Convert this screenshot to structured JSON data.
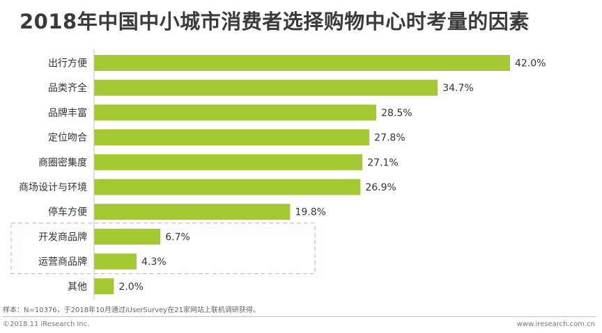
{
  "chart_data": {
    "type": "bar",
    "orientation": "horizontal",
    "title": "2018年中国中小城市消费者选择购物中心时考量的因素",
    "categories": [
      "出行方便",
      "品类齐全",
      "品牌丰富",
      "定位吻合",
      "商圈密集度",
      "商场设计与环境",
      "停车方便",
      "开发商品牌",
      "运营商品牌",
      "其他"
    ],
    "values": [
      42.0,
      34.7,
      28.5,
      27.8,
      27.1,
      26.9,
      19.8,
      6.7,
      4.3,
      2.0
    ],
    "value_labels": [
      "42.0%",
      "34.7%",
      "28.5%",
      "27.8%",
      "27.1%",
      "26.9%",
      "19.8%",
      "6.7%",
      "4.3%",
      "2.0%"
    ],
    "xlim": [
      0,
      42.0
    ],
    "unit": "%",
    "highlighted_categories": [
      "开发商品牌",
      "运营商品牌"
    ],
    "bar_color": "#a4c932",
    "highlight_box_color": "#e8a0a0",
    "grid": false,
    "legend": "none"
  },
  "footer": {
    "note": "样本：N=10376，于2018年10月通过iUserSurvey在21家网站上联机调研获得。",
    "copyright": "©2018.11 iResearch Inc.",
    "website": "www.iresearch.com.cn"
  }
}
